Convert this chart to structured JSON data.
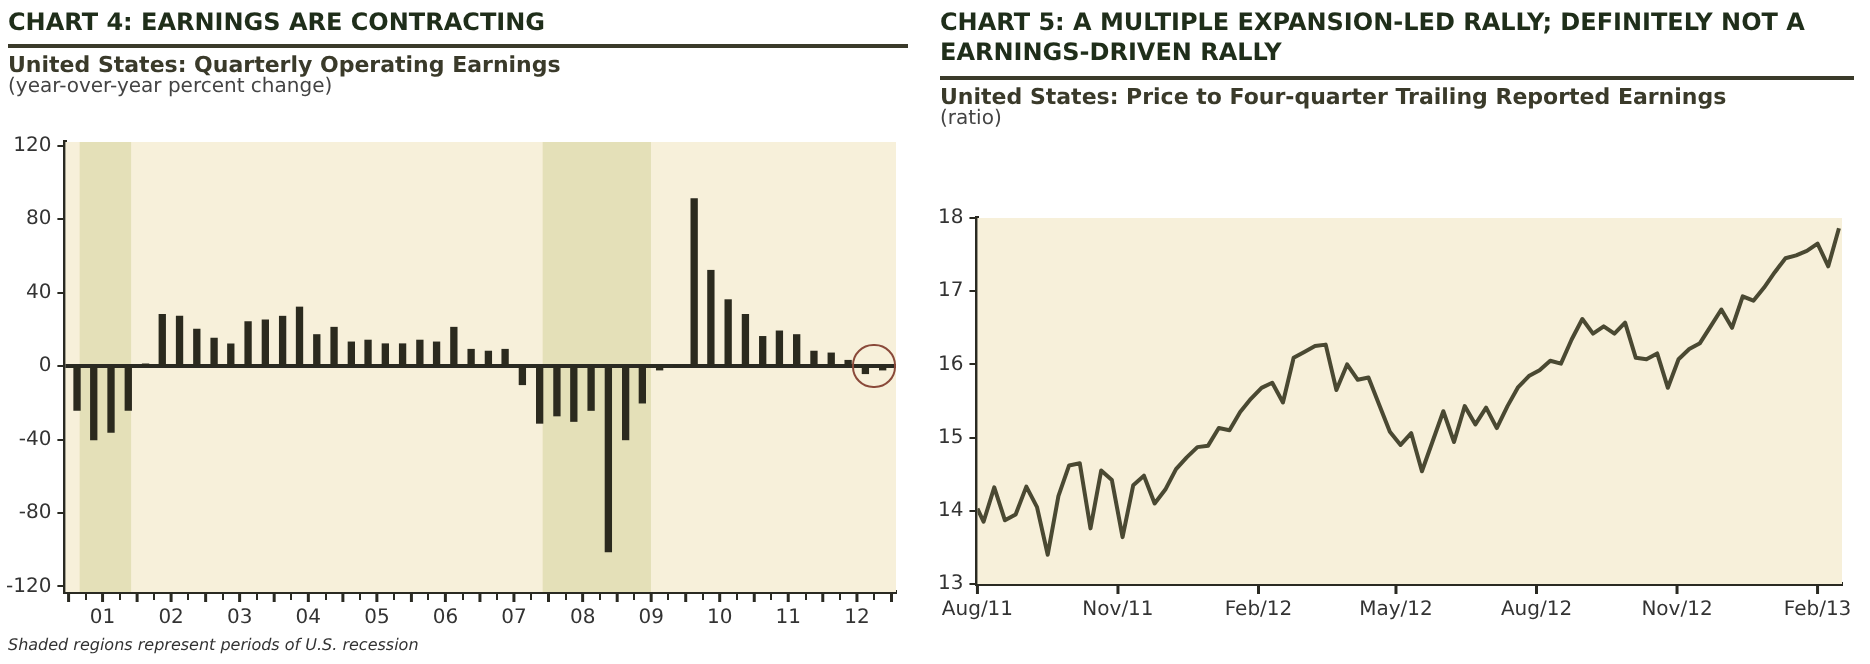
{
  "chart_data": [
    {
      "type": "bar",
      "title": "CHART 4: EARNINGS ARE CONTRACTING",
      "subtitle": "United States: Quarterly Operating Earnings",
      "ylabel": "(year-over-year percent change)",
      "x": [
        "2001-02-15",
        "2001-05-15",
        "2001-08-15",
        "2001-11-15",
        "2002-02-15",
        "2002-05-15",
        "2002-08-15",
        "2002-11-15",
        "2003-02-15",
        "2003-05-15",
        "2003-08-15",
        "2003-11-15",
        "2004-02-15",
        "2004-05-15",
        "2004-08-15",
        "2004-11-15",
        "2005-02-15",
        "2005-05-15",
        "2005-08-15",
        "2005-11-15",
        "2006-02-15",
        "2006-05-15",
        "2006-08-15",
        "2006-11-15",
        "2007-02-15",
        "2007-05-15",
        "2007-08-15",
        "2007-11-15",
        "2008-02-15",
        "2008-05-15",
        "2008-08-15",
        "2008-11-15",
        "2009-02-15",
        "2009-05-15",
        "2009-08-15",
        "2009-11-15",
        "2010-02-15",
        "2010-05-15",
        "2010-08-15",
        "2010-11-15",
        "2011-02-15",
        "2011-05-15",
        "2011-08-15",
        "2011-11-15",
        "2012-02-15",
        "2012-05-15",
        "2012-08-15",
        "2012-11-15"
      ],
      "values": [
        -24,
        -40,
        -36,
        -24,
        1,
        28,
        27,
        20,
        15,
        12,
        24,
        25,
        27,
        32,
        17,
        21,
        13,
        14,
        12,
        12,
        14,
        13,
        21,
        9,
        8,
        9,
        -10,
        -31,
        -27,
        -30,
        -24,
        -101,
        -40,
        -20,
        -2,
        0,
        91,
        52,
        36,
        28,
        16,
        19,
        17,
        8,
        7,
        3,
        -4,
        -2
      ],
      "color": "#2b2a1e",
      "xlim": [
        "2000-12-15",
        "2013-01-25"
      ],
      "ylim": [
        -123,
        122
      ],
      "xticks": [
        {
          "value": "2001-01-01",
          "label": null
        },
        {
          "value": "2001-07-01",
          "label": "01"
        },
        {
          "value": "2002-01-01",
          "label": null
        },
        {
          "value": "2002-07-01",
          "label": "02"
        },
        {
          "value": "2003-01-01",
          "label": null
        },
        {
          "value": "2003-07-01",
          "label": "03"
        },
        {
          "value": "2004-01-01",
          "label": null
        },
        {
          "value": "2004-07-01",
          "label": "04"
        },
        {
          "value": "2005-01-01",
          "label": null
        },
        {
          "value": "2005-07-01",
          "label": "05"
        },
        {
          "value": "2006-01-01",
          "label": null
        },
        {
          "value": "2006-07-01",
          "label": "06"
        },
        {
          "value": "2007-01-01",
          "label": null
        },
        {
          "value": "2007-07-01",
          "label": "07"
        },
        {
          "value": "2008-01-01",
          "label": null
        },
        {
          "value": "2008-07-01",
          "label": "08"
        },
        {
          "value": "2009-01-01",
          "label": null
        },
        {
          "value": "2009-07-01",
          "label": "09"
        },
        {
          "value": "2010-01-01",
          "label": null
        },
        {
          "value": "2010-07-01",
          "label": "10"
        },
        {
          "value": "2011-01-01",
          "label": null
        },
        {
          "value": "2011-07-01",
          "label": "11"
        },
        {
          "value": "2012-01-01",
          "label": null
        },
        {
          "value": "2012-07-01",
          "label": "12"
        },
        {
          "value": "2013-01-01",
          "label": null
        }
      ],
      "yticks": [
        -120,
        -80,
        -40,
        0,
        40,
        80,
        120
      ],
      "bands": [
        {
          "axis": "x",
          "from": "2001-03-01",
          "to": "2001-11-30",
          "color": "#e4e0b8"
        },
        {
          "axis": "x",
          "from": "2007-12-01",
          "to": "2009-06-30",
          "color": "#e4e0b8"
        }
      ],
      "annotations": [
        "Shaded regions represent periods of U.S. recession"
      ]
    },
    {
      "type": "line",
      "title": "CHART 5: A MULTIPLE EXPANSION-LED RALLY; DEFINITELY NOT A EARNINGS-DRIVEN RALLY",
      "subtitle": "United States: Price to Four-quarter Trailing Reported Earnings",
      "ylabel": "(ratio)",
      "x": [
        "2011-08-01",
        "2011-08-05",
        "2011-08-12",
        "2011-08-19",
        "2011-08-26",
        "2011-09-02",
        "2011-09-09",
        "2011-09-16",
        "2011-09-23",
        "2011-09-30",
        "2011-10-07",
        "2011-10-14",
        "2011-10-21",
        "2011-10-28",
        "2011-11-04",
        "2011-11-11",
        "2011-11-18",
        "2011-11-25",
        "2011-12-02",
        "2011-12-09",
        "2011-12-16",
        "2011-12-23",
        "2011-12-30",
        "2012-01-06",
        "2012-01-13",
        "2012-01-20",
        "2012-01-27",
        "2012-02-03",
        "2012-02-10",
        "2012-02-17",
        "2012-02-24",
        "2012-03-02",
        "2012-03-09",
        "2012-03-16",
        "2012-03-23",
        "2012-03-30",
        "2012-04-06",
        "2012-04-13",
        "2012-04-20",
        "2012-04-27",
        "2012-05-04",
        "2012-05-11",
        "2012-05-18",
        "2012-05-25",
        "2012-06-01",
        "2012-06-08",
        "2012-06-15",
        "2012-06-22",
        "2012-06-29",
        "2012-07-06",
        "2012-07-13",
        "2012-07-20",
        "2012-07-27",
        "2012-08-03",
        "2012-08-10",
        "2012-08-17",
        "2012-08-24",
        "2012-08-31",
        "2012-09-07",
        "2012-09-14",
        "2012-09-21",
        "2012-09-28",
        "2012-10-05",
        "2012-10-12",
        "2012-10-19",
        "2012-10-26",
        "2012-11-02",
        "2012-11-09",
        "2012-11-16",
        "2012-11-23",
        "2012-11-30",
        "2012-12-07",
        "2012-12-14",
        "2012-12-21",
        "2012-12-28",
        "2013-01-04",
        "2013-01-11",
        "2013-01-18",
        "2013-01-25",
        "2013-02-01",
        "2013-02-08",
        "2013-02-15"
      ],
      "values": [
        14.03,
        13.85,
        14.32,
        13.87,
        13.95,
        14.33,
        14.05,
        13.4,
        14.2,
        14.62,
        14.65,
        13.76,
        14.55,
        14.42,
        13.64,
        14.35,
        14.48,
        14.1,
        14.29,
        14.57,
        14.73,
        14.87,
        14.89,
        15.13,
        15.1,
        15.35,
        15.53,
        15.68,
        15.75,
        15.48,
        16.09,
        16.17,
        16.25,
        16.27,
        15.65,
        16.0,
        15.79,
        15.82,
        15.45,
        15.08,
        14.9,
        15.06,
        14.54,
        14.95,
        15.36,
        14.94,
        15.43,
        15.18,
        15.41,
        15.13,
        15.43,
        15.69,
        15.84,
        15.92,
        16.05,
        16.01,
        16.34,
        16.62,
        16.42,
        16.52,
        16.42,
        16.57,
        16.09,
        16.07,
        16.15,
        15.68,
        16.07,
        16.21,
        16.29,
        16.52,
        16.75,
        16.5,
        16.93,
        16.87,
        17.05,
        17.26,
        17.45,
        17.49,
        17.55,
        17.65,
        17.34,
        17.86
      ],
      "color": "#4a4932",
      "xlim": [
        "2011-08-01",
        "2013-02-17"
      ],
      "ylim": [
        13,
        18
      ],
      "xticks": [
        {
          "value": "2011-08-01",
          "label": "Aug/11"
        },
        {
          "value": "2011-11-01",
          "label": "Nov/11"
        },
        {
          "value": "2012-02-01",
          "label": "Feb/12"
        },
        {
          "value": "2012-05-01",
          "label": "May/12"
        },
        {
          "value": "2012-08-01",
          "label": "Aug/12"
        },
        {
          "value": "2012-11-01",
          "label": "Nov/12"
        },
        {
          "value": "2013-02-01",
          "label": "Feb/13"
        }
      ],
      "yticks": [
        13,
        14,
        15,
        16,
        17,
        18
      ]
    }
  ]
}
